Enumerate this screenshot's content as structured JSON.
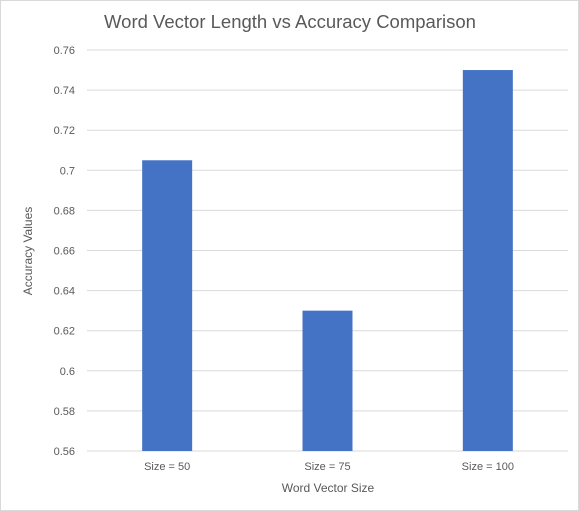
{
  "chart_data": {
    "type": "bar",
    "title": "Word Vector Length vs Accuracy Comparison",
    "xlabel": "Word Vector Size",
    "ylabel": "Accuracy Values",
    "categories": [
      "Size = 50",
      "Size = 75",
      "Size = 100"
    ],
    "values": [
      0.705,
      0.63,
      0.75
    ],
    "ylim": [
      0.56,
      0.76
    ],
    "yticks": [
      "0.56",
      "0.58",
      "0.6",
      "0.62",
      "0.64",
      "0.66",
      "0.68",
      "0.7",
      "0.72",
      "0.74",
      "0.76"
    ],
    "grid": true,
    "legend": "none",
    "bar_color": "#4472c4",
    "grid_color": "#d9d9d9"
  }
}
